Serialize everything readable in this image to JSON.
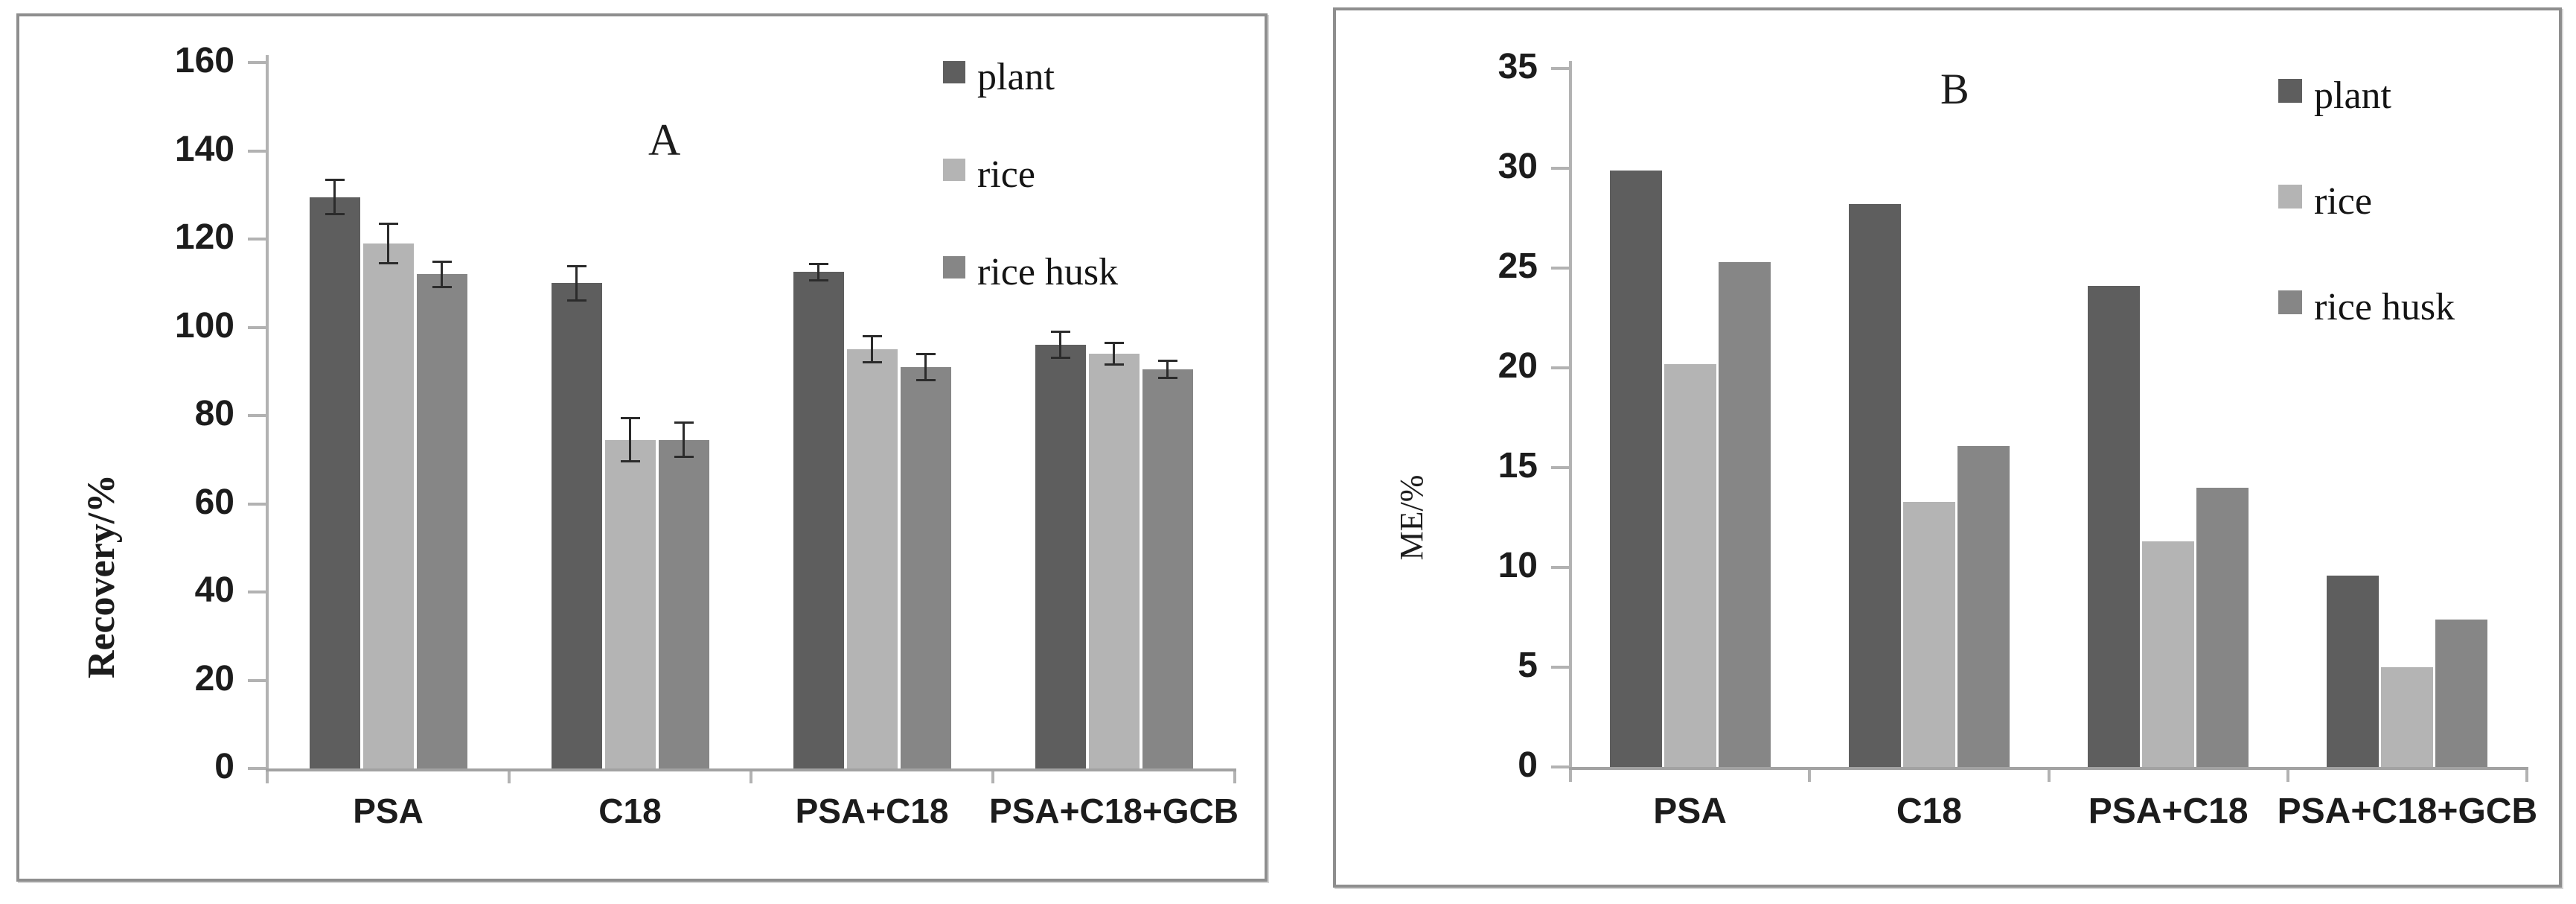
{
  "figure": {
    "description": "Two-panel grouped bar figure comparing sorbents",
    "panels": [
      {
        "letter": "A",
        "y_axis_title": "Recovery/%"
      },
      {
        "letter": "B",
        "y_axis_title": "ME/%"
      }
    ]
  },
  "chart_data": [
    {
      "type": "bar",
      "panel_label": "A",
      "title": "A",
      "xlabel": "",
      "ylabel": "Recovery/%",
      "ylim": [
        0,
        160
      ],
      "ytick_labels": [
        "0",
        "20",
        "40",
        "60",
        "80",
        "100",
        "120",
        "140",
        "160"
      ],
      "categories": [
        "PSA",
        "C18",
        "PSA+C18",
        "PSA+C18+GCB"
      ],
      "legend": [
        "plant",
        "rice",
        "rice husk"
      ],
      "legend_position": "top-right",
      "grid": false,
      "error_bars": true,
      "series": [
        {
          "name": "plant",
          "color": "#5e5e5e",
          "values": [
            129.5,
            110,
            112.5,
            96
          ],
          "errors": [
            4,
            4,
            2,
            3
          ]
        },
        {
          "name": "rice",
          "color": "#b4b4b4",
          "values": [
            119,
            74.5,
            95,
            94
          ],
          "errors": [
            4.5,
            5,
            3,
            2.5
          ]
        },
        {
          "name": "rice husk",
          "color": "#868686",
          "values": [
            112,
            74.5,
            91,
            90.5
          ],
          "errors": [
            3,
            4,
            3,
            2
          ]
        }
      ]
    },
    {
      "type": "bar",
      "panel_label": "B",
      "title": "B",
      "xlabel": "",
      "ylabel": "ME/%",
      "ylim": [
        0,
        35
      ],
      "ytick_labels": [
        "0",
        "5",
        "10",
        "15",
        "20",
        "25",
        "30",
        "35"
      ],
      "categories": [
        "PSA",
        "C18",
        "PSA+C18",
        "PSA+C18+GCB"
      ],
      "legend": [
        "plant",
        "rice",
        "rice husk"
      ],
      "legend_position": "top-right",
      "grid": false,
      "error_bars": false,
      "series": [
        {
          "name": "plant",
          "color": "#5e5e5e",
          "values": [
            29.9,
            28.2,
            24.1,
            9.6
          ]
        },
        {
          "name": "rice",
          "color": "#b4b4b4",
          "values": [
            20.2,
            13.3,
            11.3,
            5.0
          ]
        },
        {
          "name": "rice husk",
          "color": "#868686",
          "values": [
            25.3,
            16.1,
            14.0,
            7.4
          ]
        }
      ]
    }
  ]
}
